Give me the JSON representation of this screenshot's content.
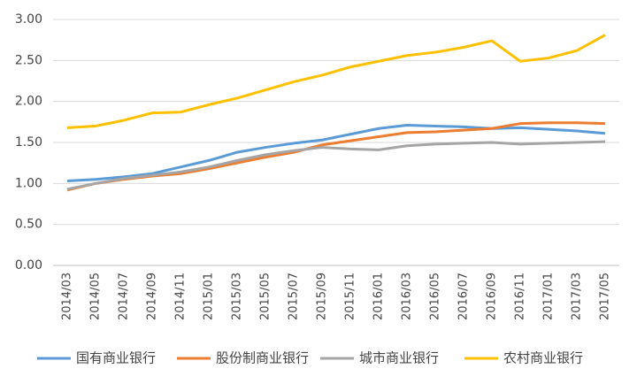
{
  "chart_data": {
    "type": "line",
    "categories": [
      "2014/03",
      "2014/05",
      "2014/07",
      "2014/09",
      "2014/11",
      "2015/01",
      "2015/03",
      "2015/05",
      "2015/07",
      "2015/09",
      "2015/11",
      "2016/01",
      "2016/03",
      "2016/05",
      "2016/07",
      "2016/09",
      "2016/11",
      "2017/01",
      "2017/03",
      "2017/05"
    ],
    "series": [
      {
        "name": "国有商业银行",
        "color": "#5b9bd5",
        "values": [
          1.03,
          1.05,
          1.08,
          1.12,
          1.2,
          1.28,
          1.38,
          1.44,
          1.49,
          1.53,
          1.6,
          1.67,
          1.71,
          1.7,
          1.69,
          1.67,
          1.68,
          1.66,
          1.64,
          1.61
        ]
      },
      {
        "name": "股份制商业银行",
        "color": "#ed7d31",
        "values": [
          0.92,
          1.0,
          1.05,
          1.09,
          1.12,
          1.18,
          1.25,
          1.32,
          1.38,
          1.47,
          1.52,
          1.57,
          1.62,
          1.63,
          1.65,
          1.67,
          1.73,
          1.74,
          1.74,
          1.73
        ]
      },
      {
        "name": "城市商业银行",
        "color": "#a5a5a5",
        "values": [
          0.93,
          1.0,
          1.06,
          1.1,
          1.14,
          1.2,
          1.28,
          1.35,
          1.4,
          1.44,
          1.42,
          1.41,
          1.46,
          1.48,
          1.49,
          1.5,
          1.48,
          1.49,
          1.5,
          1.51
        ]
      },
      {
        "name": "农村商业银行",
        "color": "#ffc000",
        "values": [
          1.68,
          1.7,
          1.77,
          1.86,
          1.87,
          1.96,
          2.04,
          2.14,
          2.24,
          2.32,
          2.42,
          2.49,
          2.56,
          2.6,
          2.66,
          2.74,
          2.49,
          2.53,
          2.62,
          2.81
        ]
      }
    ],
    "ylim": [
      0,
      3
    ],
    "yticks": [
      {
        "value": 0,
        "label": "0.00"
      },
      {
        "value": 0.5,
        "label": "0.50"
      },
      {
        "value": 1,
        "label": "1.00"
      },
      {
        "value": 1.5,
        "label": "1.50"
      },
      {
        "value": 2,
        "label": "2.00"
      },
      {
        "value": 2.5,
        "label": "2.50"
      },
      {
        "value": 3,
        "label": "3.00"
      }
    ],
    "grid": true,
    "legend": "bottom"
  }
}
